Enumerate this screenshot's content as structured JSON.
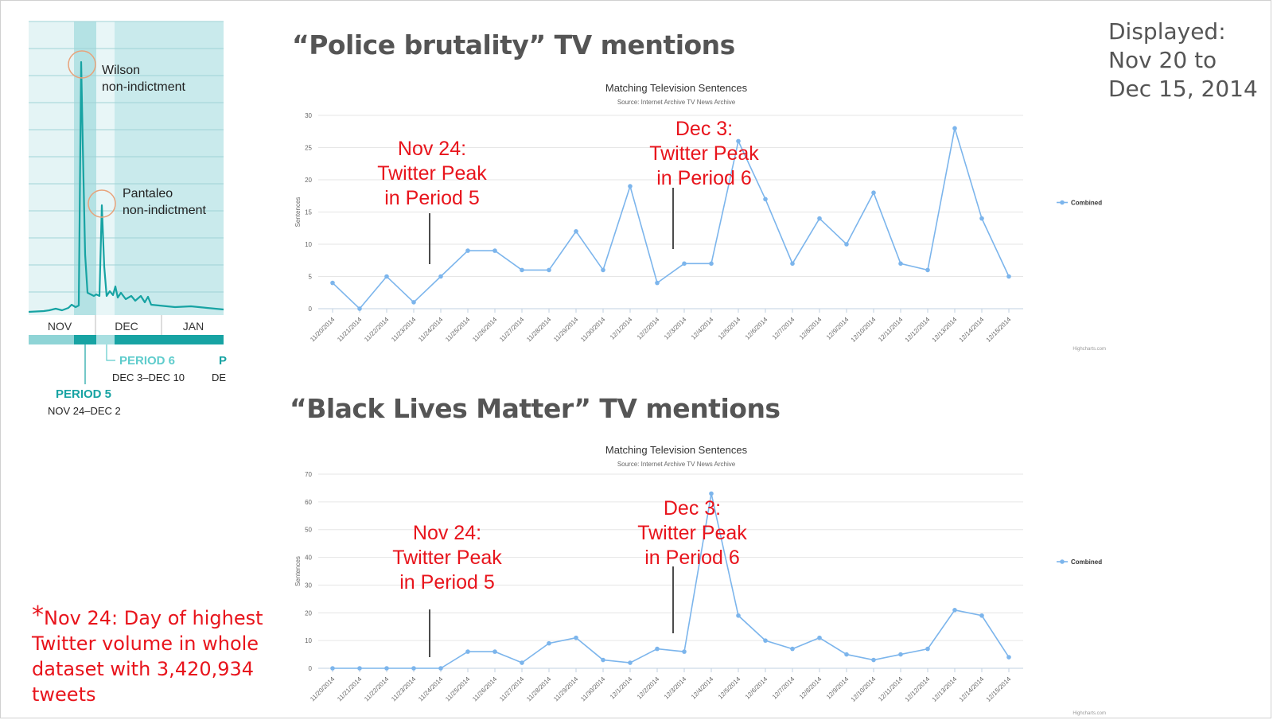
{
  "slide": {
    "displayed": [
      "Displayed:",
      "Nov 20 to",
      "Dec 15, 2014"
    ],
    "footnote": {
      "star": "*",
      "lines": [
        "Nov 24: Day of highest",
        "Twitter volume in whole",
        "dataset with 3,420,934",
        "tweets"
      ]
    }
  },
  "twitter_inset": {
    "months": [
      "NOV",
      "DEC",
      "JAN"
    ],
    "events": [
      {
        "label": [
          "Wilson",
          "non-indictment"
        ]
      },
      {
        "label": [
          "Pantaleo",
          "non-indictment"
        ]
      }
    ],
    "periods": [
      {
        "name": "PERIOD 5",
        "range": "NOV 24–DEC 2",
        "color": "#17a3a3"
      },
      {
        "name": "PERIOD 6",
        "range": "DEC 3–DEC 10",
        "color": "#5fcccc"
      },
      {
        "name": "P",
        "range": "DE",
        "color": "#17a3a3"
      }
    ],
    "colors": {
      "bg": "#d6eef0",
      "line": "#17a3a3",
      "circle": "#e8a27a"
    }
  },
  "chart_data": [
    {
      "type": "line",
      "heading": "“Police brutality” TV mentions",
      "title": "Matching Television Sentences",
      "subtitle": "Source: Internet Archive TV News Archive",
      "ylabel": "Sentences",
      "credit": "Highcharts.com",
      "ylim": [
        0,
        30
      ],
      "yticks": [
        0,
        5,
        10,
        15,
        20,
        25,
        30
      ],
      "x": [
        "11/20/2014",
        "11/21/2014",
        "11/22/2014",
        "11/23/2014",
        "11/24/2014",
        "11/25/2014",
        "11/26/2014",
        "11/27/2014",
        "11/28/2014",
        "11/29/2014",
        "11/30/2014",
        "12/1/2014",
        "12/2/2014",
        "12/3/2014",
        "12/4/2014",
        "12/5/2014",
        "12/6/2014",
        "12/7/2014",
        "12/8/2014",
        "12/9/2014",
        "12/10/2014",
        "12/11/2014",
        "12/12/2014",
        "12/13/2014",
        "12/14/2014",
        "12/15/2014"
      ],
      "series": [
        {
          "name": "Combined",
          "values": [
            4,
            0,
            5,
            1,
            5,
            9,
            9,
            6,
            6,
            12,
            6,
            19,
            4,
            7,
            7,
            26,
            17,
            7,
            14,
            10,
            18,
            7,
            6,
            28,
            14,
            5
          ],
          "color": "#7cb5ec"
        }
      ],
      "legend": "right",
      "annotations": [
        {
          "text": [
            "Nov 24:",
            "Twitter Peak",
            "in Period 5"
          ],
          "x": "11/24/2014",
          "color": "#e8141c"
        },
        {
          "text": [
            "Dec 3:",
            "Twitter Peak",
            "in Period 6"
          ],
          "x": "12/3/2014",
          "color": "#e8141c"
        }
      ]
    },
    {
      "type": "line",
      "heading": "“Black Lives Matter” TV mentions",
      "title": "Matching Television Sentences",
      "subtitle": "Source: Internet Archive TV News Archive",
      "ylabel": "Sentences",
      "credit": "Highcharts.com",
      "ylim": [
        0,
        70
      ],
      "yticks": [
        0,
        10,
        20,
        30,
        40,
        50,
        60,
        70
      ],
      "x": [
        "11/20/2014",
        "11/21/2014",
        "11/22/2014",
        "11/23/2014",
        "11/24/2014",
        "11/25/2014",
        "11/26/2014",
        "11/27/2014",
        "11/28/2014",
        "11/29/2014",
        "11/30/2014",
        "12/1/2014",
        "12/2/2014",
        "12/3/2014",
        "12/4/2014",
        "12/5/2014",
        "12/6/2014",
        "12/7/2014",
        "12/8/2014",
        "12/9/2014",
        "12/10/2014",
        "12/11/2014",
        "12/12/2014",
        "12/13/2014",
        "12/14/2014",
        "12/15/2014"
      ],
      "series": [
        {
          "name": "Combined",
          "values": [
            0,
            0,
            0,
            0,
            0,
            6,
            6,
            2,
            9,
            11,
            3,
            2,
            7,
            6,
            63,
            19,
            10,
            7,
            11,
            5,
            3,
            5,
            7,
            21,
            19,
            4
          ],
          "color": "#7cb5ec"
        }
      ],
      "legend": "right",
      "annotations": [
        {
          "text": [
            "Nov 24:",
            "Twitter Peak",
            "in Period 5"
          ],
          "x": "11/24/2014",
          "color": "#e8141c"
        },
        {
          "text": [
            "Dec 3:",
            "Twitter Peak",
            "in Period 6"
          ],
          "x": "12/3/2014",
          "color": "#e8141c"
        }
      ]
    }
  ]
}
